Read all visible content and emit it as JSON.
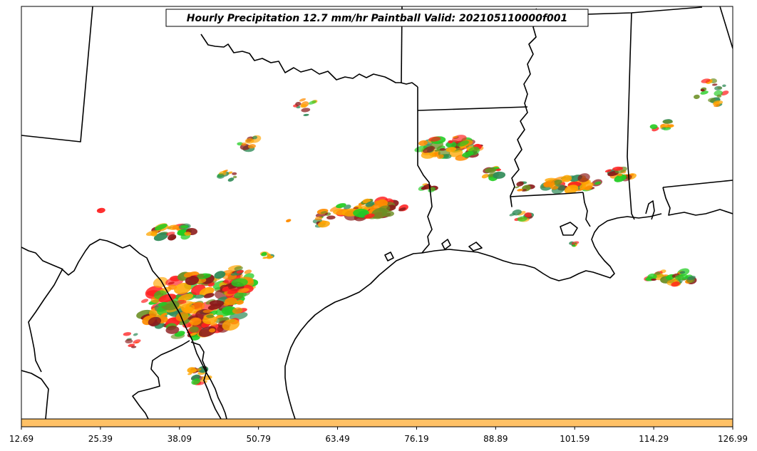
{
  "title": "Hourly Precipitation 12.7 mm/hr Paintball Valid: 202105110000f001",
  "colorbar": {
    "color": "#FFC166",
    "ticks": [
      "12.69",
      "25.39",
      "38.09",
      "50.79",
      "63.49",
      "76.19",
      "88.89",
      "101.59",
      "114.29",
      "126.99"
    ]
  },
  "colors": {
    "boundary": "#000000",
    "member_colors": [
      "#FF8C00",
      "#FF2020",
      "#22CC22",
      "#8B1A1A",
      "#6B8E23",
      "#FFA500",
      "#2E8B57"
    ]
  }
}
